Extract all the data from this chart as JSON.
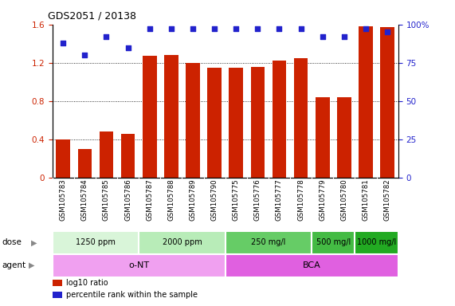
{
  "title": "GDS2051 / 20138",
  "samples": [
    "GSM105783",
    "GSM105784",
    "GSM105785",
    "GSM105786",
    "GSM105787",
    "GSM105788",
    "GSM105789",
    "GSM105790",
    "GSM105775",
    "GSM105776",
    "GSM105777",
    "GSM105778",
    "GSM105779",
    "GSM105780",
    "GSM105781",
    "GSM105782"
  ],
  "log10_ratio": [
    0.4,
    0.3,
    0.48,
    0.46,
    1.27,
    1.28,
    1.2,
    1.15,
    1.15,
    1.16,
    1.22,
    1.25,
    0.84,
    0.84,
    1.58,
    1.57
  ],
  "percentile_rank": [
    88,
    80,
    92,
    85,
    97,
    97,
    97,
    97,
    97,
    97,
    97,
    97,
    92,
    92,
    97,
    95
  ],
  "bar_color": "#cc2200",
  "dot_color": "#2222cc",
  "ylim_left": [
    0,
    1.6
  ],
  "ylim_right": [
    0,
    100
  ],
  "yticks_left": [
    0,
    0.4,
    0.8,
    1.2,
    1.6
  ],
  "yticks_right": [
    0,
    25,
    50,
    75,
    100
  ],
  "ytick_labels_left": [
    "0",
    "0.4",
    "0.8",
    "1.2",
    "1.6"
  ],
  "ytick_labels_right": [
    "0",
    "25",
    "50",
    "75",
    "100%"
  ],
  "dose_groups": [
    {
      "label": "1250 ppm",
      "start": 0,
      "end": 4,
      "color": "#d9f5d9"
    },
    {
      "label": "2000 ppm",
      "start": 4,
      "end": 8,
      "color": "#b8ecb8"
    },
    {
      "label": "250 mg/l",
      "start": 8,
      "end": 12,
      "color": "#66cc66"
    },
    {
      "label": "500 mg/l",
      "start": 12,
      "end": 14,
      "color": "#44bb44"
    },
    {
      "label": "1000 mg/l",
      "start": 14,
      "end": 16,
      "color": "#22aa22"
    }
  ],
  "agent_groups": [
    {
      "label": "o-NT",
      "start": 0,
      "end": 8,
      "color": "#f0a0f0"
    },
    {
      "label": "BCA",
      "start": 8,
      "end": 16,
      "color": "#e060e0"
    }
  ],
  "legend_items": [
    {
      "color": "#cc2200",
      "label": "log10 ratio"
    },
    {
      "color": "#2222cc",
      "label": "percentile rank within the sample"
    }
  ],
  "bg_color": "#ffffff",
  "ticklabel_bg": "#d8d8d8",
  "grid_color": "#000000"
}
